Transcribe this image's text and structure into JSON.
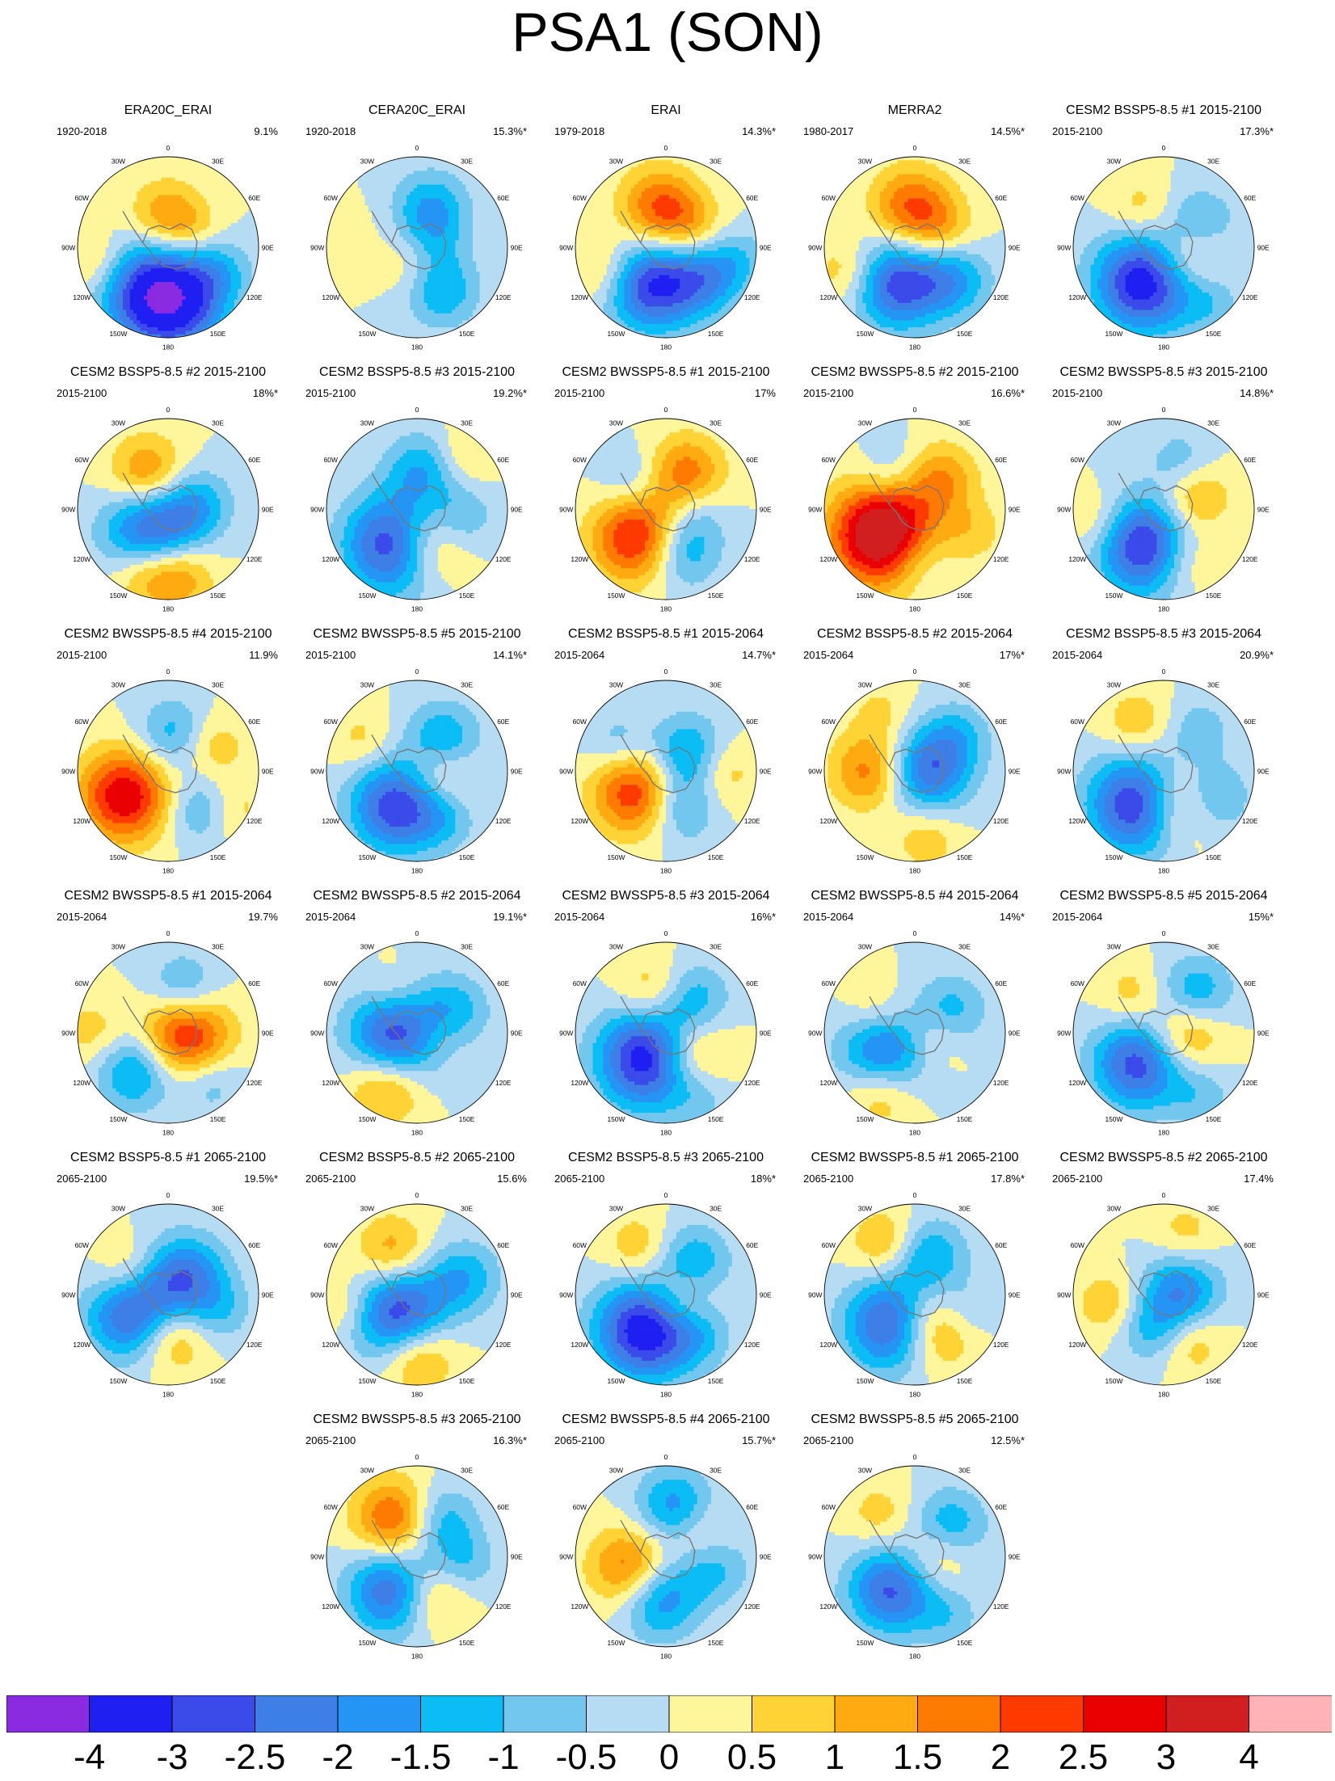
{
  "title": "PSA1 (SON)",
  "panels": [
    {
      "title": "ERA20C_ERAI",
      "period": "1920-2018",
      "variance": "9.1%",
      "blobs": [
        {
          "a": 190,
          "r": 0.55,
          "v": -4.3
        },
        {
          "a": 355,
          "r": 0.35,
          "v": 1.4
        },
        {
          "a": 60,
          "r": 0.3,
          "v": 0.8
        },
        {
          "a": 120,
          "r": 0.6,
          "v": -1.2
        },
        {
          "a": 260,
          "r": 0.85,
          "v": 0.8
        },
        {
          "a": 160,
          "r": 0.9,
          "v": -0.6
        }
      ]
    },
    {
      "title": "CERA20C_ERAI",
      "period": "1920-2018",
      "variance": "15.3%*",
      "blobs": [
        {
          "a": 20,
          "r": 0.45,
          "v": -1.6
        },
        {
          "a": 150,
          "r": 0.55,
          "v": -1.5
        },
        {
          "a": 200,
          "r": 0.2,
          "v": 0.6
        },
        {
          "a": 80,
          "r": 0.2,
          "v": -0.6
        },
        {
          "a": 280,
          "r": 0.85,
          "v": 0.4
        }
      ]
    },
    {
      "title": "ERAI",
      "period": "1979-2018",
      "variance": "14.3%*",
      "blobs": [
        {
          "a": 200,
          "r": 0.45,
          "v": -3.0
        },
        {
          "a": 350,
          "r": 0.45,
          "v": 2.0
        },
        {
          "a": 130,
          "r": 0.55,
          "v": -1.6
        },
        {
          "a": 50,
          "r": 0.35,
          "v": 1.0
        },
        {
          "a": 250,
          "r": 0.75,
          "v": 1.0
        },
        {
          "a": 100,
          "r": 0.8,
          "v": -0.8
        }
      ]
    },
    {
      "title": "MERRA2",
      "period": "1980-2017",
      "variance": "14.5%*",
      "blobs": [
        {
          "a": 205,
          "r": 0.45,
          "v": -2.8
        },
        {
          "a": 355,
          "r": 0.45,
          "v": 2.0
        },
        {
          "a": 130,
          "r": 0.55,
          "v": -1.6
        },
        {
          "a": 60,
          "r": 0.35,
          "v": 1.0
        },
        {
          "a": 250,
          "r": 0.8,
          "v": 1.0
        }
      ]
    },
    {
      "title": "CESM2 BSSP5-8.5 #1 2015-2100",
      "period": "2015-2100",
      "variance": "17.3%*",
      "blobs": [
        {
          "a": 210,
          "r": 0.45,
          "v": -3.5
        },
        {
          "a": 60,
          "r": 0.45,
          "v": -1.5
        },
        {
          "a": 100,
          "r": 0.3,
          "v": 1.6
        },
        {
          "a": 330,
          "r": 0.5,
          "v": 0.8
        },
        {
          "a": 140,
          "r": 0.8,
          "v": -0.8
        }
      ]
    },
    {
      "title": "CESM2 BSSP5-8.5 #2 2015-2100",
      "period": "2015-2100",
      "variance": "18%*",
      "blobs": [
        {
          "a": 215,
          "r": 0.35,
          "v": -3.0
        },
        {
          "a": 80,
          "r": 0.3,
          "v": -1.4
        },
        {
          "a": 330,
          "r": 0.45,
          "v": 1.7
        },
        {
          "a": 200,
          "r": 0.7,
          "v": 1.6
        },
        {
          "a": 170,
          "r": 0.75,
          "v": 1.4
        }
      ]
    },
    {
      "title": "CESM2 BSSP5-8.5 #3 2015-2100",
      "period": "2015-2100",
      "variance": "19.2%*",
      "blobs": [
        {
          "a": 210,
          "r": 0.45,
          "v": -3.6
        },
        {
          "a": 165,
          "r": 0.4,
          "v": 2.2
        },
        {
          "a": 10,
          "r": 0.45,
          "v": -1.5
        },
        {
          "a": 40,
          "r": 0.75,
          "v": 0.8
        },
        {
          "a": 100,
          "r": 0.5,
          "v": -1.0
        }
      ]
    },
    {
      "title": "CESM2 BWSSP5-8.5 #1 2015-2100",
      "period": "2015-2100",
      "variance": "17%",
      "blobs": [
        {
          "a": 225,
          "r": 0.45,
          "v": 2.8
        },
        {
          "a": 30,
          "r": 0.45,
          "v": 1.8
        },
        {
          "a": 160,
          "r": 0.5,
          "v": -1.6
        },
        {
          "a": 310,
          "r": 0.5,
          "v": -0.8
        },
        {
          "a": 100,
          "r": 0.35,
          "v": -0.7
        }
      ]
    },
    {
      "title": "CESM2 BWSSP5-8.5 #2 2015-2100",
      "period": "2015-2100",
      "variance": "16.6%*",
      "blobs": [
        {
          "a": 230,
          "r": 0.45,
          "v": 4.2
        },
        {
          "a": 40,
          "r": 0.45,
          "v": 1.4
        },
        {
          "a": 180,
          "r": 0.55,
          "v": -1.0
        },
        {
          "a": 330,
          "r": 0.5,
          "v": -0.8
        },
        {
          "a": 110,
          "r": 0.7,
          "v": 0.7
        }
      ]
    },
    {
      "title": "CESM2 BWSSP5-8.5 #3 2015-2100",
      "period": "2015-2100",
      "variance": "14.8%*",
      "blobs": [
        {
          "a": 205,
          "r": 0.45,
          "v": -3.4
        },
        {
          "a": 70,
          "r": 0.35,
          "v": 1.4
        },
        {
          "a": 160,
          "r": 0.6,
          "v": 1.2
        },
        {
          "a": 20,
          "r": 0.55,
          "v": -0.9
        },
        {
          "a": 260,
          "r": 0.75,
          "v": 0.8
        }
      ]
    },
    {
      "title": "CESM2 BWSSP5-8.5 #4 2015-2100",
      "period": "2015-2100",
      "variance": "11.9%",
      "blobs": [
        {
          "a": 240,
          "r": 0.55,
          "v": 3.0
        },
        {
          "a": 10,
          "r": 0.4,
          "v": -1.4
        },
        {
          "a": 140,
          "r": 0.55,
          "v": -1.2
        },
        {
          "a": 60,
          "r": 0.55,
          "v": 1.0
        },
        {
          "a": 120,
          "r": 0.85,
          "v": 0.8
        }
      ]
    },
    {
      "title": "CESM2 BWSSP5-8.5 #5 2015-2100",
      "period": "2015-2100",
      "variance": "14.1%*",
      "blobs": [
        {
          "a": 210,
          "r": 0.45,
          "v": -3.0
        },
        {
          "a": 40,
          "r": 0.45,
          "v": -1.6
        },
        {
          "a": 100,
          "r": 0.25,
          "v": 1.2
        },
        {
          "a": 150,
          "r": 0.6,
          "v": -0.8
        },
        {
          "a": 300,
          "r": 0.7,
          "v": 0.7
        }
      ]
    },
    {
      "title": "CESM2 BSSP5-8.5 #1 2015-2064",
      "period": "2015-2064",
      "variance": "14.7%*",
      "blobs": [
        {
          "a": 235,
          "r": 0.4,
          "v": 2.6
        },
        {
          "a": 60,
          "r": 0.3,
          "v": -2.0
        },
        {
          "a": 90,
          "r": 0.6,
          "v": 1.2
        },
        {
          "a": 160,
          "r": 0.45,
          "v": -1.3
        },
        {
          "a": 300,
          "r": 0.6,
          "v": -0.9
        }
      ]
    },
    {
      "title": "CESM2 BSSP5-8.5 #2 2015-2064",
      "period": "2015-2064",
      "variance": "17%*",
      "blobs": [
        {
          "a": 90,
          "r": 0.15,
          "v": -2.4
        },
        {
          "a": 270,
          "r": 0.5,
          "v": 1.8
        },
        {
          "a": 50,
          "r": 0.6,
          "v": -1.0
        },
        {
          "a": 170,
          "r": 0.75,
          "v": 0.9
        },
        {
          "a": 330,
          "r": 0.75,
          "v": 0.6
        }
      ]
    },
    {
      "title": "CESM2 BSSP5-8.5 #3 2015-2064",
      "period": "2015-2064",
      "variance": "20.9%*",
      "blobs": [
        {
          "a": 215,
          "r": 0.45,
          "v": -3.6
        },
        {
          "a": 155,
          "r": 0.4,
          "v": 2.4
        },
        {
          "a": 120,
          "r": 0.6,
          "v": -1.6
        },
        {
          "a": 330,
          "r": 0.6,
          "v": 1.0
        },
        {
          "a": 40,
          "r": 0.6,
          "v": -0.8
        }
      ]
    },
    {
      "title": "CESM2 BWSSP5-8.5 #1 2015-2064",
      "period": "2015-2064",
      "variance": "19.7%",
      "blobs": [
        {
          "a": 100,
          "r": 0.2,
          "v": 2.8
        },
        {
          "a": 220,
          "r": 0.55,
          "v": -1.8
        },
        {
          "a": 20,
          "r": 0.5,
          "v": -1.4
        },
        {
          "a": 140,
          "r": 0.7,
          "v": -1.0
        },
        {
          "a": 270,
          "r": 0.85,
          "v": 0.8
        }
      ]
    },
    {
      "title": "CESM2 BWSSP5-8.5 #2 2015-2064",
      "period": "2015-2064",
      "variance": "19.1%*",
      "blobs": [
        {
          "a": 260,
          "r": 0.2,
          "v": -3.4
        },
        {
          "a": 210,
          "r": 0.65,
          "v": 1.8
        },
        {
          "a": 60,
          "r": 0.45,
          "v": -1.4
        },
        {
          "a": 90,
          "r": 0.2,
          "v": 1.2
        },
        {
          "a": 330,
          "r": 0.5,
          "v": 0.8
        }
      ]
    },
    {
      "title": "CESM2 BWSSP5-8.5 #3 2015-2064",
      "period": "2015-2064",
      "variance": "16%*",
      "blobs": [
        {
          "a": 215,
          "r": 0.35,
          "v": -3.6
        },
        {
          "a": 135,
          "r": 0.4,
          "v": 1.8
        },
        {
          "a": 40,
          "r": 0.5,
          "v": -1.2
        },
        {
          "a": 340,
          "r": 0.5,
          "v": 1.0
        },
        {
          "a": 150,
          "r": 0.75,
          "v": -0.8
        }
      ]
    },
    {
      "title": "CESM2 BWSSP5-8.5 #4 2015-2064",
      "period": "2015-2064",
      "variance": "14%*",
      "blobs": [
        {
          "a": 230,
          "r": 0.4,
          "v": -3.0
        },
        {
          "a": 210,
          "r": 0.7,
          "v": 1.8
        },
        {
          "a": 60,
          "r": 0.45,
          "v": -1.4
        },
        {
          "a": 110,
          "r": 0.2,
          "v": 1.2
        },
        {
          "a": 300,
          "r": 0.5,
          "v": 0.8
        }
      ]
    },
    {
      "title": "CESM2 BWSSP5-8.5 #5 2015-2064",
      "period": "2015-2064",
      "variance": "15%*",
      "blobs": [
        {
          "a": 220,
          "r": 0.45,
          "v": -2.8
        },
        {
          "a": 40,
          "r": 0.55,
          "v": -1.6
        },
        {
          "a": 90,
          "r": 0.25,
          "v": 1.6
        },
        {
          "a": 320,
          "r": 0.55,
          "v": 0.8
        },
        {
          "a": 150,
          "r": 0.8,
          "v": -0.8
        }
      ]
    },
    {
      "title": "CESM2 BSSP5-8.5 #1 2065-2100",
      "period": "2065-2100",
      "variance": "19.5%*",
      "blobs": [
        {
          "a": 240,
          "r": 0.45,
          "v": -2.8
        },
        {
          "a": 45,
          "r": 0.25,
          "v": -2.4
        },
        {
          "a": 175,
          "r": 0.45,
          "v": 1.6
        },
        {
          "a": 300,
          "r": 0.5,
          "v": 1.0
        },
        {
          "a": 110,
          "r": 0.6,
          "v": -0.8
        }
      ]
    },
    {
      "title": "CESM2 BSSP5-8.5 #2 2065-2100",
      "period": "2065-2100",
      "variance": "15.6%",
      "blobs": [
        {
          "a": 220,
          "r": 0.3,
          "v": -3.2
        },
        {
          "a": 180,
          "r": 0.65,
          "v": 1.8
        },
        {
          "a": 330,
          "r": 0.55,
          "v": 1.4
        },
        {
          "a": 70,
          "r": 0.55,
          "v": -1.4
        },
        {
          "a": 260,
          "r": 0.8,
          "v": 0.8
        }
      ]
    },
    {
      "title": "CESM2 BSSP5-8.5 #3 2065-2100",
      "period": "2065-2100",
      "variance": "18%*",
      "blobs": [
        {
          "a": 210,
          "r": 0.45,
          "v": -3.6
        },
        {
          "a": 110,
          "r": 0.2,
          "v": 1.4
        },
        {
          "a": 40,
          "r": 0.45,
          "v": -1.6
        },
        {
          "a": 140,
          "r": 0.55,
          "v": -1.0
        },
        {
          "a": 330,
          "r": 0.6,
          "v": 1.0
        }
      ]
    },
    {
      "title": "CESM2 BWSSP5-8.5 #1 2065-2100",
      "period": "2065-2100",
      "variance": "17.8%*",
      "blobs": [
        {
          "a": 215,
          "r": 0.4,
          "v": -3.2
        },
        {
          "a": 150,
          "r": 0.4,
          "v": 2.4
        },
        {
          "a": 20,
          "r": 0.45,
          "v": -1.6
        },
        {
          "a": 330,
          "r": 0.65,
          "v": 1.2
        },
        {
          "a": 110,
          "r": 0.55,
          "v": -1.0
        }
      ]
    },
    {
      "title": "CESM2 BWSSP5-8.5 #2 2065-2100",
      "period": "2065-2100",
      "variance": "17.4%",
      "blobs": [
        {
          "a": 80,
          "r": 0.2,
          "v": -2.0
        },
        {
          "a": 200,
          "r": 0.4,
          "v": -1.2
        },
        {
          "a": 260,
          "r": 0.6,
          "v": 1.0
        },
        {
          "a": 150,
          "r": 0.6,
          "v": 1.0
        },
        {
          "a": 20,
          "r": 0.7,
          "v": 0.8
        }
      ]
    },
    {
      "title": "CESM2 BWSSP5-8.5 #3 2065-2100",
      "period": "2065-2100",
      "variance": "16.3%*",
      "blobs": [
        {
          "a": 330,
          "r": 0.45,
          "v": 2.4
        },
        {
          "a": 215,
          "r": 0.45,
          "v": -2.8
        },
        {
          "a": 160,
          "r": 0.45,
          "v": 1.6
        },
        {
          "a": 30,
          "r": 0.45,
          "v": -1.6
        },
        {
          "a": 100,
          "r": 0.5,
          "v": -1.0
        }
      ]
    },
    {
      "title": "CESM2 BWSSP5-8.5 #4 2065-2100",
      "period": "2065-2100",
      "variance": "15.7%*",
      "blobs": [
        {
          "a": 250,
          "r": 0.4,
          "v": 2.2
        },
        {
          "a": 190,
          "r": 0.45,
          "v": -2.2
        },
        {
          "a": 10,
          "r": 0.55,
          "v": -1.8
        },
        {
          "a": 100,
          "r": 0.55,
          "v": -1.2
        },
        {
          "a": 60,
          "r": 0.45,
          "v": 0.9
        }
      ]
    },
    {
      "title": "CESM2 BWSSP5-8.5 #5 2065-2100",
      "period": "2065-2100",
      "variance": "12.5%*",
      "blobs": [
        {
          "a": 215,
          "r": 0.45,
          "v": -2.6
        },
        {
          "a": 50,
          "r": 0.5,
          "v": -1.6
        },
        {
          "a": 90,
          "r": 0.25,
          "v": 1.2
        },
        {
          "a": 320,
          "r": 0.6,
          "v": 0.8
        },
        {
          "a": 150,
          "r": 0.75,
          "v": -0.8
        }
      ]
    }
  ],
  "map_labels": {
    "lon": [
      "0",
      "30E",
      "60E",
      "90E",
      "120E",
      "150E",
      "180",
      "150W",
      "120W",
      "90W",
      "60W",
      "30W"
    ]
  },
  "colorbar": {
    "colors": [
      "#8a2be2",
      "#1f1ff2",
      "#3a4bea",
      "#3d7ee7",
      "#2495f5",
      "#0bbcf5",
      "#72c7ef",
      "#b5dcf2",
      "#fff59b",
      "#ffd335",
      "#ffaa10",
      "#ff7a00",
      "#ff3a00",
      "#ea0000",
      "#d11f1f",
      "#ffb3b6"
    ],
    "levels": [
      -4,
      -3,
      -2.5,
      -2,
      -1.5,
      -1,
      -0.5,
      0,
      0.5,
      1,
      1.5,
      2,
      2.5,
      3,
      4
    ],
    "labels": [
      "-4",
      "-3",
      "-2.5",
      "-2",
      "-1.5",
      "-1",
      "-0.5",
      "0",
      "0.5",
      "1",
      "1.5",
      "2",
      "2.5",
      "3",
      "4"
    ]
  }
}
